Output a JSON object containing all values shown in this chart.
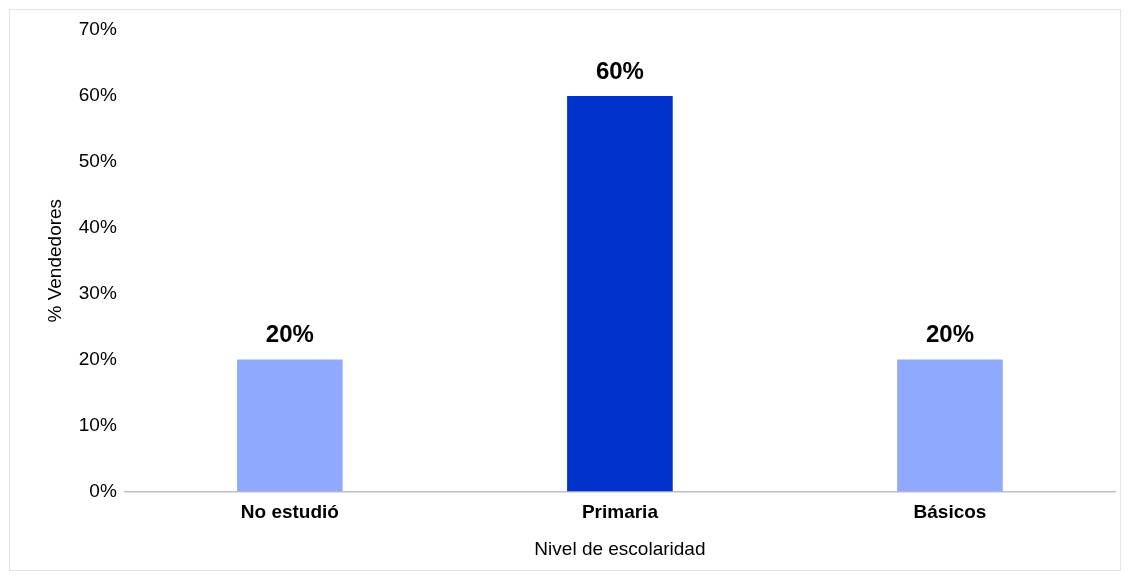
{
  "chart_data": {
    "type": "bar",
    "xlabel": "Nivel de escolaridad",
    "ylabel": "% Vendedores",
    "categories": [
      "No estudió",
      "Primaria",
      "Básicos"
    ],
    "values": [
      20,
      60,
      20
    ],
    "colors": [
      "#8fa9ff",
      "#0033cc",
      "#8fa9ff"
    ],
    "value_labels": [
      "20%",
      "60%",
      "20%"
    ],
    "ylim": [
      0,
      70
    ],
    "yticks": [
      {
        "value": 0,
        "label": "0%"
      },
      {
        "value": 10,
        "label": "10%"
      },
      {
        "value": 20,
        "label": "20%"
      },
      {
        "value": 30,
        "label": "30%"
      },
      {
        "value": 40,
        "label": "40%"
      },
      {
        "value": 50,
        "label": "50%"
      },
      {
        "value": 60,
        "label": "60%"
      },
      {
        "value": 70,
        "label": "70%"
      }
    ],
    "grid": false,
    "legend": false
  }
}
